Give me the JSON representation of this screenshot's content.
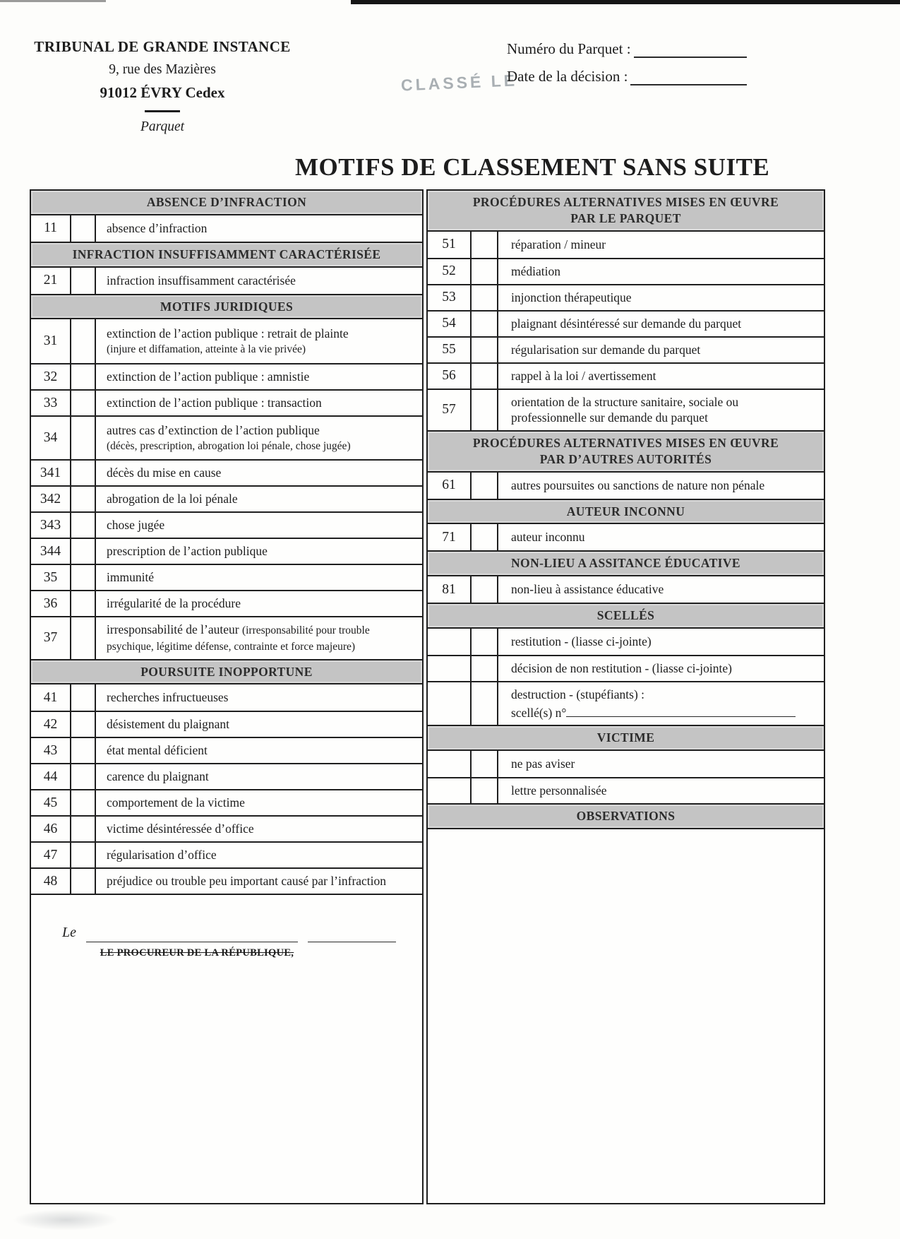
{
  "page": {
    "stamp": "CLASSÉ LE",
    "title": "MOTIFS DE CLASSEMENT SANS SUITE"
  },
  "colors": {
    "header_bar": "#c4c4c4",
    "border": "#1f1f1f",
    "stamp": "#8e959b"
  },
  "header": {
    "court_name": "TRIBUNAL DE GRANDE INSTANCE",
    "address_line1": "9, rue des Mazières",
    "address_line2": "91012 ÉVRY Cedex",
    "division": "Parquet",
    "parquet_number_label": "Numéro du Parquet :",
    "parquet_number_value": "",
    "decision_date_label": "Date de la décision :",
    "decision_date_value": ""
  },
  "left_column": {
    "sections": [
      {
        "header": "ABSENCE D’INFRACTION",
        "rows": [
          {
            "code": "11",
            "checked": false,
            "label": "absence d’infraction"
          }
        ]
      },
      {
        "header": "INFRACTION INSUFFISAMMENT CARACTÉRISÉE",
        "rows": [
          {
            "code": "21",
            "checked": false,
            "label": "infraction insuffisamment caractérisée"
          }
        ]
      },
      {
        "header": "MOTIFS JURIDIQUES",
        "rows": [
          {
            "code": "31",
            "checked": false,
            "label": "extinction de l’action publique : retrait de plainte",
            "note": "(injure et diffamation, atteinte à la vie privée)"
          },
          {
            "code": "32",
            "checked": false,
            "label": "extinction de l’action publique : amnistie"
          },
          {
            "code": "33",
            "checked": false,
            "label": "extinction de l’action publique : transaction"
          },
          {
            "code": "34",
            "checked": false,
            "label": "autres cas d’extinction de l’action publique",
            "note": "(décès, prescription, abrogation loi pénale, chose jugée)"
          },
          {
            "code": "341",
            "checked": false,
            "label": "décès du mise en cause"
          },
          {
            "code": "342",
            "checked": false,
            "label": "abrogation de la loi pénale"
          },
          {
            "code": "343",
            "checked": false,
            "label": "chose jugée"
          },
          {
            "code": "344",
            "checked": false,
            "label": "prescription de l’action publique"
          },
          {
            "code": "35",
            "checked": false,
            "label": "immunité"
          },
          {
            "code": "36",
            "checked": false,
            "label": "irrégularité de la procédure"
          },
          {
            "code": "37",
            "checked": false,
            "label": "irresponsabilité de l’auteur",
            "note": "(irresponsabilité pour trouble psychique, légitime défense, contrainte et force majeure)",
            "note_inline": true
          }
        ]
      },
      {
        "header": "POURSUITE INOPPORTUNE",
        "rows": [
          {
            "code": "41",
            "checked": false,
            "label": "recherches infructueuses"
          },
          {
            "code": "42",
            "checked": false,
            "label": "désistement du plaignant"
          },
          {
            "code": "43",
            "checked": false,
            "label": "état mental déficient"
          },
          {
            "code": "44",
            "checked": false,
            "label": "carence du plaignant"
          },
          {
            "code": "45",
            "checked": false,
            "label": "comportement de la victime"
          },
          {
            "code": "46",
            "checked": false,
            "label": "victime désintéressée d’office"
          },
          {
            "code": "47",
            "checked": false,
            "label": "régularisation d’office"
          },
          {
            "code": "48",
            "checked": false,
            "label": "préjudice ou trouble peu important causé par l’infraction"
          }
        ]
      }
    ],
    "signature": {
      "date_prefix": "Le",
      "signer_label": "LE PROCUREUR DE LA RÉPUBLIQUE,"
    }
  },
  "right_column": {
    "sections": [
      {
        "header": "PROCÉDURES ALTERNATIVES MISES EN ŒUVRE",
        "header2": "PAR LE PARQUET",
        "rows": [
          {
            "code": "51",
            "checked": false,
            "label": "réparation / mineur"
          },
          {
            "code": "52",
            "checked": false,
            "label": "médiation"
          },
          {
            "code": "53",
            "checked": false,
            "label": "injonction thérapeutique"
          },
          {
            "code": "54",
            "checked": false,
            "label": "plaignant désintéressé sur demande du parquet"
          },
          {
            "code": "55",
            "checked": false,
            "label": "régularisation sur demande du parquet"
          },
          {
            "code": "56",
            "checked": false,
            "label": "rappel à la loi / avertissement"
          },
          {
            "code": "57",
            "checked": false,
            "label": "orientation de la structure sanitaire, sociale ou professionnelle sur demande du parquet"
          }
        ]
      },
      {
        "header": "PROCÉDURES ALTERNATIVES MISES EN ŒUVRE",
        "header2": "PAR D’AUTRES AUTORITÉS",
        "rows": [
          {
            "code": "61",
            "checked": false,
            "label": "autres poursuites ou sanctions de nature non pénale"
          }
        ]
      },
      {
        "header": "AUTEUR INCONNU",
        "rows": [
          {
            "code": "71",
            "checked": false,
            "label": "auteur inconnu"
          }
        ]
      },
      {
        "header": "NON-LIEU A ASSITANCE ÉDUCATIVE",
        "rows": [
          {
            "code": "81",
            "checked": false,
            "label": "non-lieu à assistance éducative"
          }
        ]
      },
      {
        "header": "SCELLÉS",
        "rows": [
          {
            "code": "",
            "checked": false,
            "label": "restitution - (liasse ci-jointe)"
          },
          {
            "code": "",
            "checked": false,
            "label": "décision de non restitution - (liasse ci-jointe)"
          },
          {
            "code": "",
            "checked": false,
            "label": "destruction - (stupéfiants) :",
            "line2": "scellé(s) n°",
            "line2_field": true
          }
        ]
      },
      {
        "header": "VICTIME",
        "rows": [
          {
            "code": "",
            "checked": false,
            "label": "ne pas aviser"
          },
          {
            "code": "",
            "checked": false,
            "label": "lettre personnalisée"
          }
        ]
      },
      {
        "header": "OBSERVATIONS",
        "rows": [],
        "fill": true
      }
    ]
  }
}
